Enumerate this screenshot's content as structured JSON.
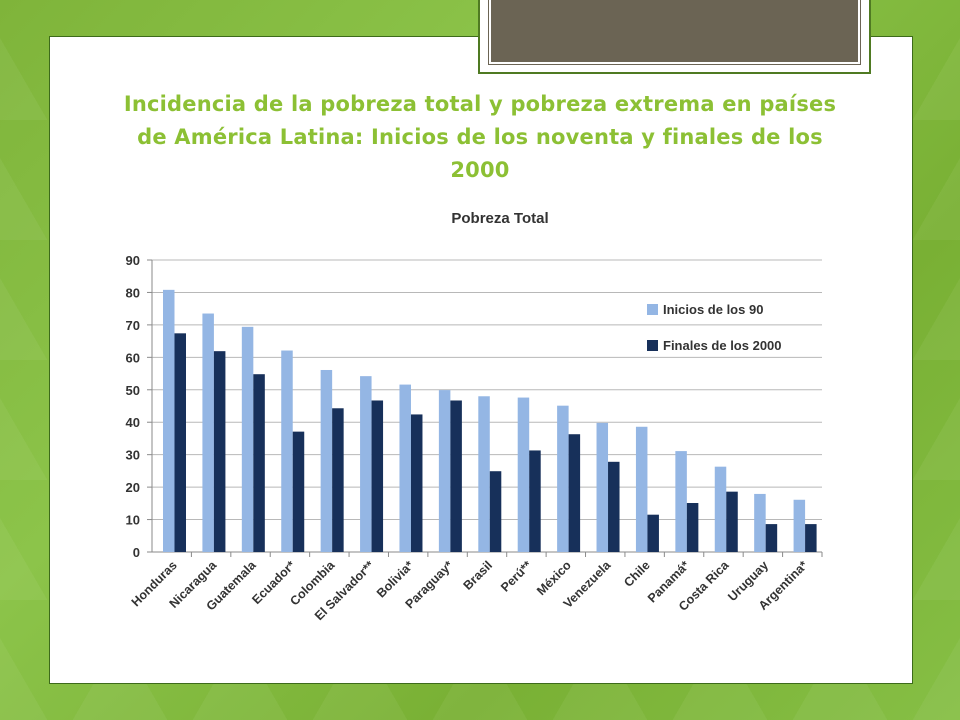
{
  "slide": {
    "title": "Incidencia de la pobreza total y pobreza extrema en países de América Latina: Inicios de los noventa y finales de los 2000"
  },
  "chart_data": {
    "type": "bar",
    "title": "Pobreza Total",
    "categories": [
      "Honduras",
      "Nicaragua",
      "Guatemala",
      "Ecuador*",
      "Colombia",
      "El Salvador**",
      "Bolivia*",
      "Paraguay*",
      "Brasil",
      "Perú**",
      "México",
      "Venezuela",
      "Chile",
      "Panamá*",
      "Costa Rica",
      "Uruguay",
      "Argentina*"
    ],
    "series": [
      {
        "name": "Inicios de los 90",
        "color": "#94b6e4",
        "values": [
          80.8,
          73.5,
          69.4,
          62.1,
          56.1,
          54.2,
          51.6,
          49.9,
          48.0,
          47.6,
          45.1,
          39.8,
          38.6,
          31.1,
          26.3,
          17.9,
          16.1
        ]
      },
      {
        "name": "Finales de los 2000",
        "color": "#17305a",
        "values": [
          67.4,
          61.9,
          54.8,
          37.1,
          44.3,
          46.7,
          42.4,
          46.7,
          24.9,
          31.3,
          36.3,
          27.8,
          11.5,
          15.1,
          18.6,
          8.6,
          8.6
        ]
      }
    ],
    "xlabel": "",
    "ylabel": "",
    "ylim": [
      0,
      90
    ],
    "yticks": [
      0,
      10,
      20,
      30,
      40,
      50,
      60,
      70,
      80,
      90
    ],
    "grid": true,
    "legend_position": "top-right"
  }
}
